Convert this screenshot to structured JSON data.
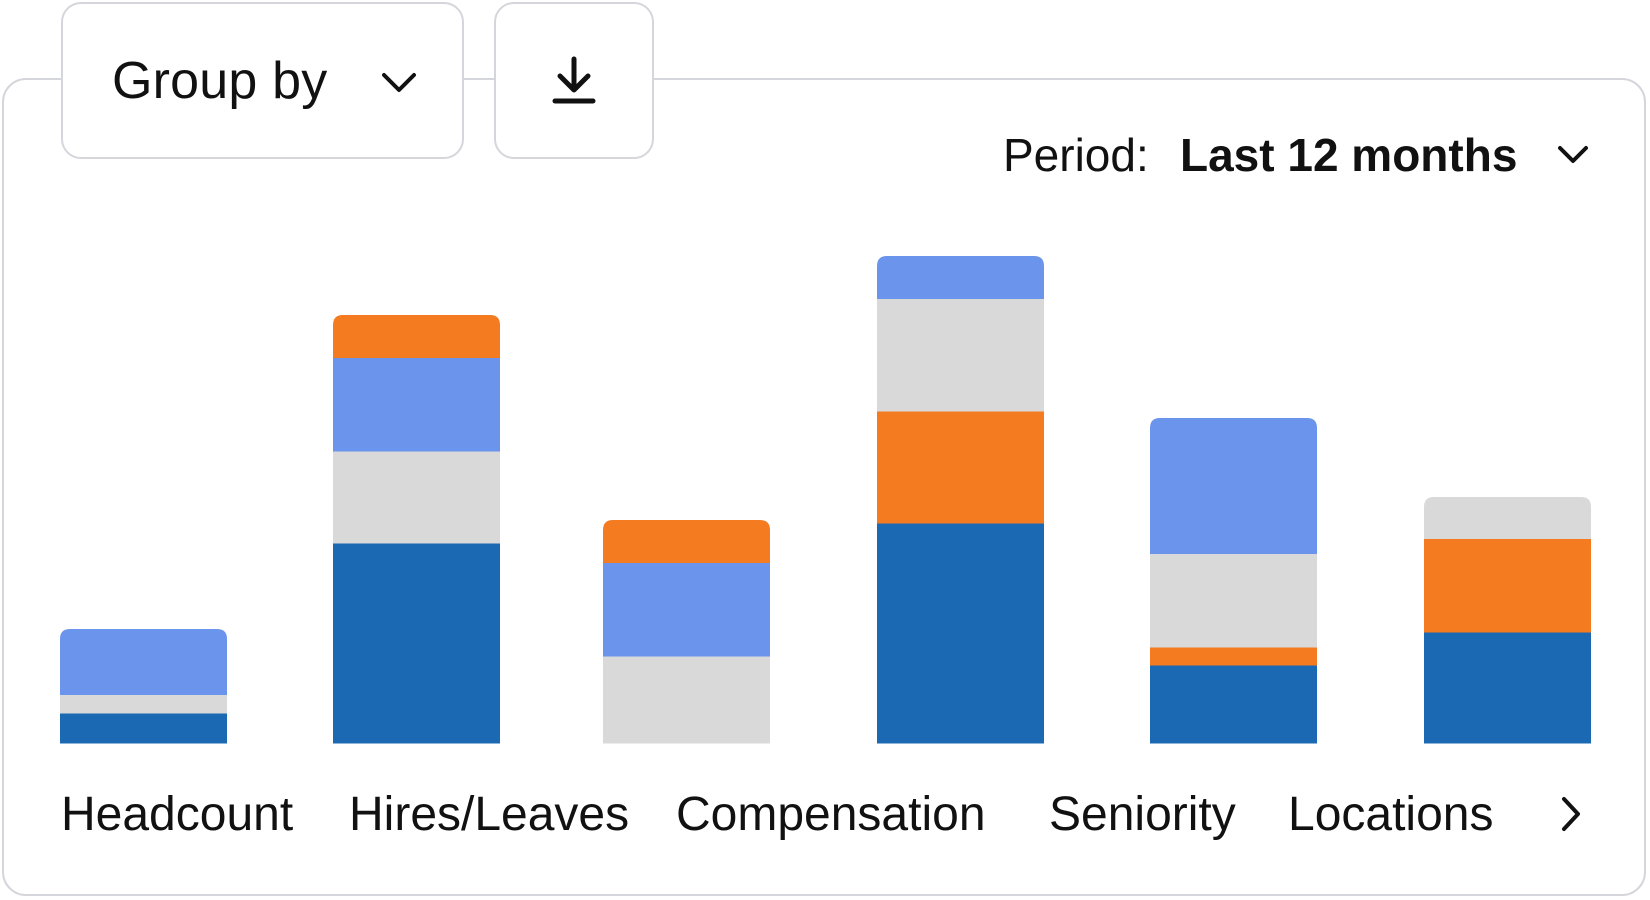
{
  "toolbar": {
    "group_by_label": "Group by",
    "group_by_icon": "chevron-down-icon",
    "download_icon": "download-icon"
  },
  "period": {
    "label": "Period:",
    "value": "Last 12 months",
    "icon": "chevron-down-icon"
  },
  "navigation": {
    "next_icon": "chevron-right-icon"
  },
  "colors": {
    "dark_blue": "#1c69b3",
    "light_grey": "#d9d9d9",
    "orange": "#f47b20",
    "light_blue": "#6b94ec"
  },
  "chart_data": {
    "type": "bar",
    "stacked": true,
    "categories": [
      "Headcount",
      "Hires/Leaves",
      "Compensation",
      "",
      "Seniority",
      "Locations"
    ],
    "category_labels_visible": [
      "Headcount",
      "Hires/Leaves",
      "Compensation",
      "Seniority",
      "Locations"
    ],
    "series": [
      {
        "color": "#1c69b3",
        "values": [
          30,
          200,
          0,
          220,
          78,
          111
        ]
      },
      {
        "color": "#d9d9d9",
        "values": [
          18,
          92,
          87,
          112,
          93,
          42
        ]
      },
      {
        "color": "#f47b20",
        "values": [
          0,
          43,
          43,
          112,
          18,
          93
        ]
      },
      {
        "color": "#6b94ec",
        "values": [
          66,
          93,
          93,
          43,
          136,
          0
        ]
      }
    ],
    "segment_order": [
      [
        "#1c69b3",
        "#d9d9d9",
        "#f47b20",
        "#6b94ec"
      ],
      [
        "#1c69b3",
        "#d9d9d9",
        "#6b94ec",
        "#f47b20"
      ],
      [
        "#d9d9d9",
        "#6b94ec",
        "#f47b20"
      ],
      [
        "#1c69b3",
        "#f47b20",
        "#d9d9d9",
        "#6b94ec"
      ],
      [
        "#1c69b3",
        "#f47b20",
        "#d9d9d9",
        "#6b94ec"
      ],
      [
        "#1c69b3",
        "#f47b20",
        "#d9d9d9"
      ]
    ],
    "ylim": [
      0,
      500
    ],
    "grid": false,
    "legend": "none",
    "title": "",
    "xlabel": "",
    "ylabel": ""
  }
}
